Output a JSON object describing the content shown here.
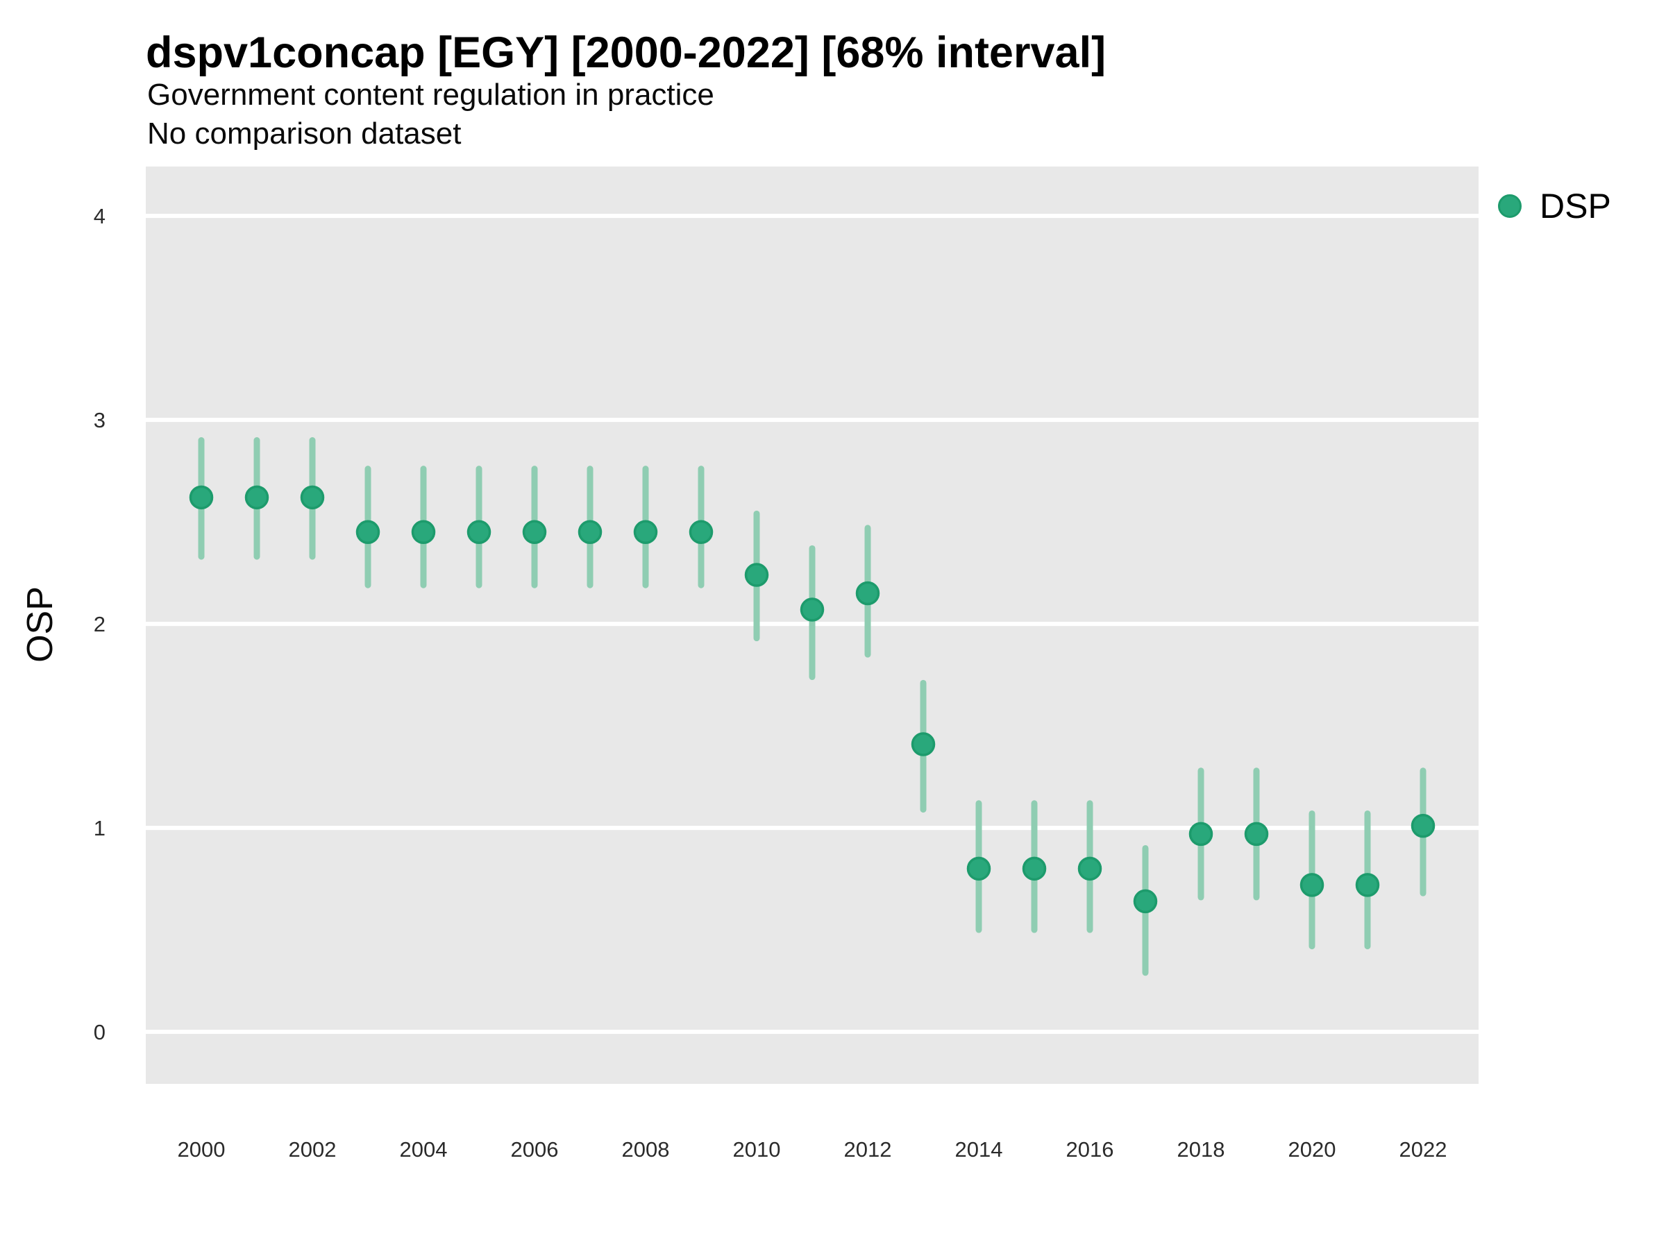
{
  "header": {
    "title": "dspv1concap [EGY] [2000-2022] [68% interval]",
    "subtitle_line1": "Government content regulation in practice",
    "subtitle_line2": "No comparison dataset"
  },
  "legend": {
    "label": "DSP",
    "position": "right"
  },
  "axes": {
    "y_title": "OSP",
    "x_title": "",
    "y_tick_labels": [
      "0",
      "1",
      "2",
      "3",
      "4"
    ],
    "x_tick_labels": [
      "2000",
      "2002",
      "2004",
      "2006",
      "2008",
      "2010",
      "2012",
      "2014",
      "2016",
      "2018",
      "2020",
      "2022"
    ]
  },
  "colors": {
    "point_fill": "#29A87B",
    "point_stroke": "#1D9B6C",
    "interval_bar": "#8FCDB2",
    "panel_background": "#E8E8E8",
    "gridline": "#FFFFFF",
    "tick_label": "#2b2b2b",
    "text": "#000000"
  },
  "chart_data": {
    "type": "scatter",
    "subtype": "point-with-interval",
    "title": "dspv1concap [EGY] [2000-2022] [68% interval]",
    "subtitle": [
      "Government content regulation in practice",
      "No comparison dataset"
    ],
    "xlabel": "",
    "ylabel": "OSP",
    "interval": "68%",
    "x": [
      2000,
      2001,
      2002,
      2003,
      2004,
      2005,
      2006,
      2007,
      2008,
      2009,
      2010,
      2011,
      2012,
      2013,
      2014,
      2015,
      2016,
      2017,
      2018,
      2019,
      2020,
      2021,
      2022
    ],
    "series": [
      {
        "name": "DSP",
        "values": [
          2.62,
          2.62,
          2.62,
          2.45,
          2.45,
          2.45,
          2.45,
          2.45,
          2.45,
          2.45,
          2.24,
          2.07,
          2.15,
          1.41,
          0.8,
          0.8,
          0.8,
          0.64,
          0.97,
          0.97,
          0.72,
          0.72,
          1.01
        ],
        "lower": [
          2.33,
          2.33,
          2.33,
          2.19,
          2.19,
          2.19,
          2.19,
          2.19,
          2.19,
          2.19,
          1.93,
          1.74,
          1.85,
          1.09,
          0.5,
          0.5,
          0.5,
          0.29,
          0.66,
          0.66,
          0.42,
          0.42,
          0.68
        ],
        "upper": [
          2.9,
          2.9,
          2.9,
          2.76,
          2.76,
          2.76,
          2.76,
          2.76,
          2.76,
          2.76,
          2.54,
          2.37,
          2.47,
          1.71,
          1.12,
          1.12,
          1.12,
          0.9,
          1.28,
          1.28,
          1.07,
          1.07,
          1.28
        ]
      }
    ],
    "xlim": [
      1999,
      2023
    ],
    "ylim": [
      -0.255,
      4.242
    ],
    "y_ticks": [
      0,
      1,
      2,
      3,
      4
    ],
    "x_ticks": [
      2000,
      2002,
      2004,
      2006,
      2008,
      2010,
      2012,
      2014,
      2016,
      2018,
      2020,
      2022
    ],
    "grid": "major-horizontal-white-on-gray",
    "legend_position": "right"
  }
}
